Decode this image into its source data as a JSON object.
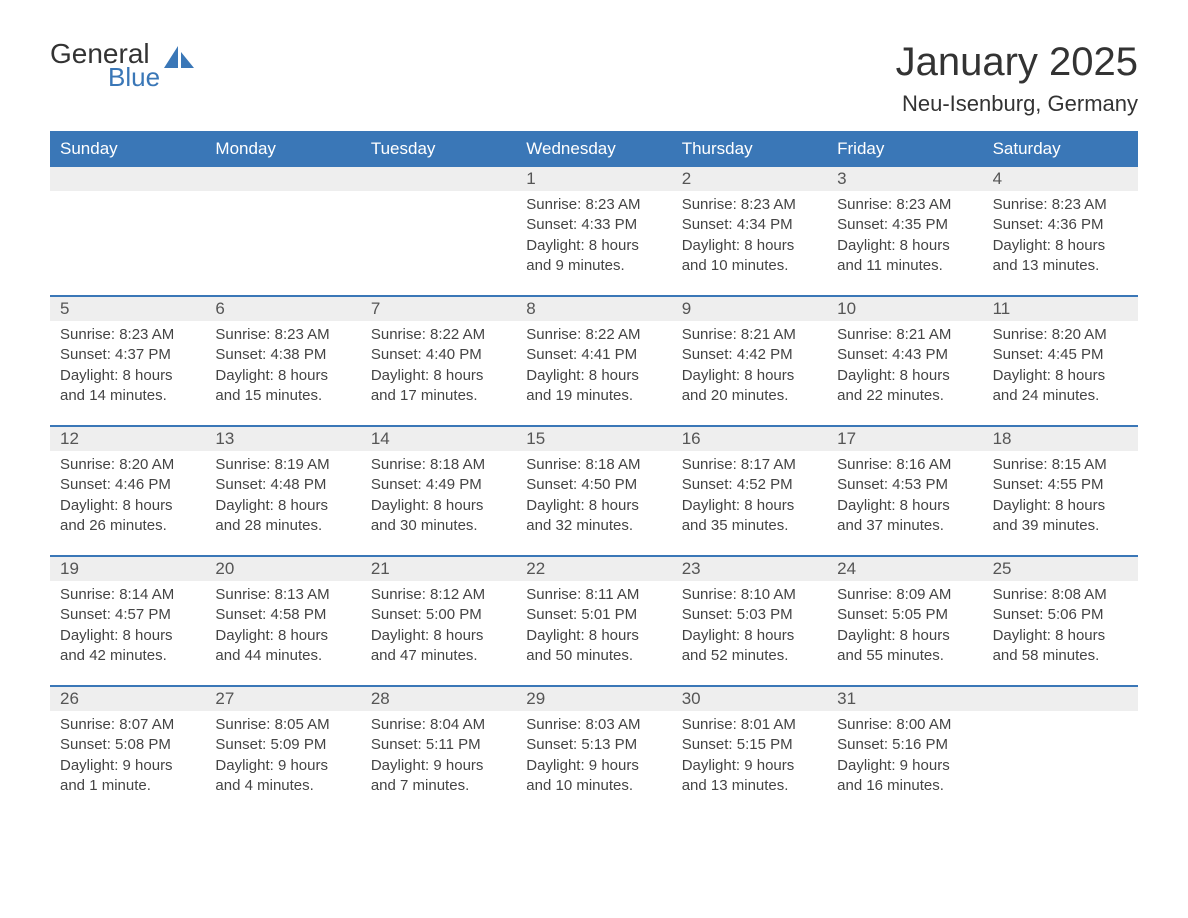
{
  "brand": {
    "general": "General",
    "blue": "Blue",
    "icon_color": "#3a77b7"
  },
  "title": "January 2025",
  "location": "Neu-Isenburg, Germany",
  "colors": {
    "header_bg": "#3a77b7",
    "header_text": "#ffffff",
    "daynum_bg": "#eeeeee",
    "daynum_text": "#555555",
    "body_text": "#444444",
    "page_bg": "#ffffff",
    "rule": "#3a77b7"
  },
  "day_headers": [
    "Sunday",
    "Monday",
    "Tuesday",
    "Wednesday",
    "Thursday",
    "Friday",
    "Saturday"
  ],
  "weeks": [
    [
      {
        "n": "",
        "sunrise": "",
        "sunset": "",
        "daylight": ""
      },
      {
        "n": "",
        "sunrise": "",
        "sunset": "",
        "daylight": ""
      },
      {
        "n": "",
        "sunrise": "",
        "sunset": "",
        "daylight": ""
      },
      {
        "n": "1",
        "sunrise": "Sunrise: 8:23 AM",
        "sunset": "Sunset: 4:33 PM",
        "daylight": "Daylight: 8 hours and 9 minutes."
      },
      {
        "n": "2",
        "sunrise": "Sunrise: 8:23 AM",
        "sunset": "Sunset: 4:34 PM",
        "daylight": "Daylight: 8 hours and 10 minutes."
      },
      {
        "n": "3",
        "sunrise": "Sunrise: 8:23 AM",
        "sunset": "Sunset: 4:35 PM",
        "daylight": "Daylight: 8 hours and 11 minutes."
      },
      {
        "n": "4",
        "sunrise": "Sunrise: 8:23 AM",
        "sunset": "Sunset: 4:36 PM",
        "daylight": "Daylight: 8 hours and 13 minutes."
      }
    ],
    [
      {
        "n": "5",
        "sunrise": "Sunrise: 8:23 AM",
        "sunset": "Sunset: 4:37 PM",
        "daylight": "Daylight: 8 hours and 14 minutes."
      },
      {
        "n": "6",
        "sunrise": "Sunrise: 8:23 AM",
        "sunset": "Sunset: 4:38 PM",
        "daylight": "Daylight: 8 hours and 15 minutes."
      },
      {
        "n": "7",
        "sunrise": "Sunrise: 8:22 AM",
        "sunset": "Sunset: 4:40 PM",
        "daylight": "Daylight: 8 hours and 17 minutes."
      },
      {
        "n": "8",
        "sunrise": "Sunrise: 8:22 AM",
        "sunset": "Sunset: 4:41 PM",
        "daylight": "Daylight: 8 hours and 19 minutes."
      },
      {
        "n": "9",
        "sunrise": "Sunrise: 8:21 AM",
        "sunset": "Sunset: 4:42 PM",
        "daylight": "Daylight: 8 hours and 20 minutes."
      },
      {
        "n": "10",
        "sunrise": "Sunrise: 8:21 AM",
        "sunset": "Sunset: 4:43 PM",
        "daylight": "Daylight: 8 hours and 22 minutes."
      },
      {
        "n": "11",
        "sunrise": "Sunrise: 8:20 AM",
        "sunset": "Sunset: 4:45 PM",
        "daylight": "Daylight: 8 hours and 24 minutes."
      }
    ],
    [
      {
        "n": "12",
        "sunrise": "Sunrise: 8:20 AM",
        "sunset": "Sunset: 4:46 PM",
        "daylight": "Daylight: 8 hours and 26 minutes."
      },
      {
        "n": "13",
        "sunrise": "Sunrise: 8:19 AM",
        "sunset": "Sunset: 4:48 PM",
        "daylight": "Daylight: 8 hours and 28 minutes."
      },
      {
        "n": "14",
        "sunrise": "Sunrise: 8:18 AM",
        "sunset": "Sunset: 4:49 PM",
        "daylight": "Daylight: 8 hours and 30 minutes."
      },
      {
        "n": "15",
        "sunrise": "Sunrise: 8:18 AM",
        "sunset": "Sunset: 4:50 PM",
        "daylight": "Daylight: 8 hours and 32 minutes."
      },
      {
        "n": "16",
        "sunrise": "Sunrise: 8:17 AM",
        "sunset": "Sunset: 4:52 PM",
        "daylight": "Daylight: 8 hours and 35 minutes."
      },
      {
        "n": "17",
        "sunrise": "Sunrise: 8:16 AM",
        "sunset": "Sunset: 4:53 PM",
        "daylight": "Daylight: 8 hours and 37 minutes."
      },
      {
        "n": "18",
        "sunrise": "Sunrise: 8:15 AM",
        "sunset": "Sunset: 4:55 PM",
        "daylight": "Daylight: 8 hours and 39 minutes."
      }
    ],
    [
      {
        "n": "19",
        "sunrise": "Sunrise: 8:14 AM",
        "sunset": "Sunset: 4:57 PM",
        "daylight": "Daylight: 8 hours and 42 minutes."
      },
      {
        "n": "20",
        "sunrise": "Sunrise: 8:13 AM",
        "sunset": "Sunset: 4:58 PM",
        "daylight": "Daylight: 8 hours and 44 minutes."
      },
      {
        "n": "21",
        "sunrise": "Sunrise: 8:12 AM",
        "sunset": "Sunset: 5:00 PM",
        "daylight": "Daylight: 8 hours and 47 minutes."
      },
      {
        "n": "22",
        "sunrise": "Sunrise: 8:11 AM",
        "sunset": "Sunset: 5:01 PM",
        "daylight": "Daylight: 8 hours and 50 minutes."
      },
      {
        "n": "23",
        "sunrise": "Sunrise: 8:10 AM",
        "sunset": "Sunset: 5:03 PM",
        "daylight": "Daylight: 8 hours and 52 minutes."
      },
      {
        "n": "24",
        "sunrise": "Sunrise: 8:09 AM",
        "sunset": "Sunset: 5:05 PM",
        "daylight": "Daylight: 8 hours and 55 minutes."
      },
      {
        "n": "25",
        "sunrise": "Sunrise: 8:08 AM",
        "sunset": "Sunset: 5:06 PM",
        "daylight": "Daylight: 8 hours and 58 minutes."
      }
    ],
    [
      {
        "n": "26",
        "sunrise": "Sunrise: 8:07 AM",
        "sunset": "Sunset: 5:08 PM",
        "daylight": "Daylight: 9 hours and 1 minute."
      },
      {
        "n": "27",
        "sunrise": "Sunrise: 8:05 AM",
        "sunset": "Sunset: 5:09 PM",
        "daylight": "Daylight: 9 hours and 4 minutes."
      },
      {
        "n": "28",
        "sunrise": "Sunrise: 8:04 AM",
        "sunset": "Sunset: 5:11 PM",
        "daylight": "Daylight: 9 hours and 7 minutes."
      },
      {
        "n": "29",
        "sunrise": "Sunrise: 8:03 AM",
        "sunset": "Sunset: 5:13 PM",
        "daylight": "Daylight: 9 hours and 10 minutes."
      },
      {
        "n": "30",
        "sunrise": "Sunrise: 8:01 AM",
        "sunset": "Sunset: 5:15 PM",
        "daylight": "Daylight: 9 hours and 13 minutes."
      },
      {
        "n": "31",
        "sunrise": "Sunrise: 8:00 AM",
        "sunset": "Sunset: 5:16 PM",
        "daylight": "Daylight: 9 hours and 16 minutes."
      },
      {
        "n": "",
        "sunrise": "",
        "sunset": "",
        "daylight": ""
      }
    ]
  ]
}
